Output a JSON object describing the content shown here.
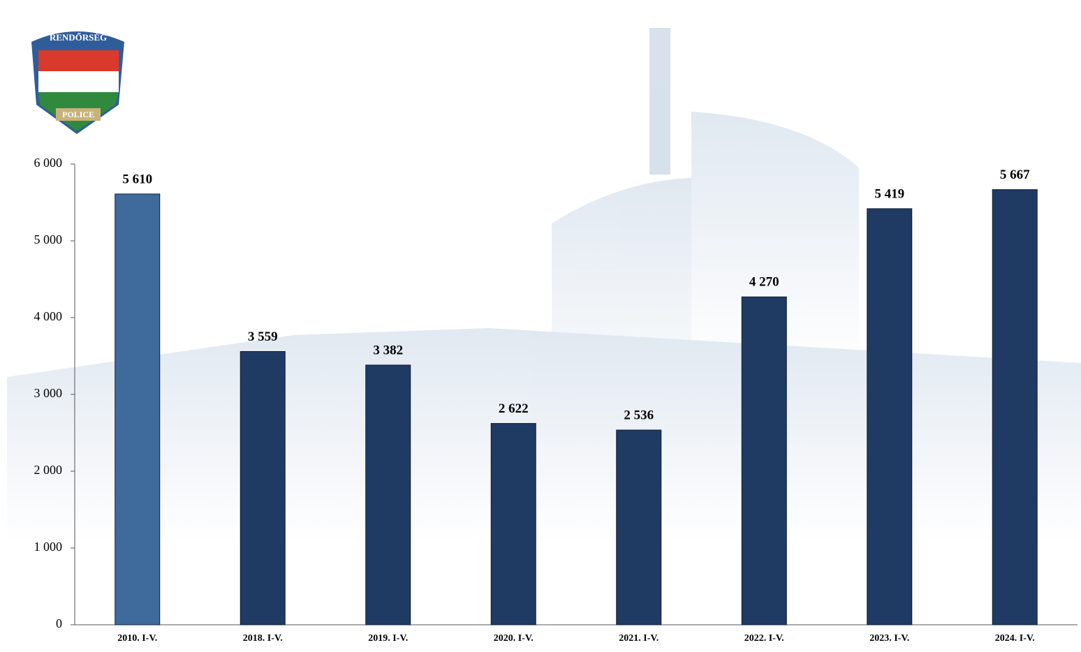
{
  "logo": {
    "top": "RENDŐRSÉG",
    "bottom": "POLICE"
  },
  "chart_data": {
    "type": "bar",
    "categories": [
      "2010. I-V.",
      "2018. I-V.",
      "2019. I-V.",
      "2020. I-V.",
      "2021. I-V.",
      "2022. I-V.",
      "2023. I-V.",
      "2024. I-V."
    ],
    "values": [
      5610,
      3559,
      3382,
      2622,
      2536,
      4270,
      5419,
      5667
    ],
    "value_labels": [
      "5 610",
      "3 559",
      "3 382",
      "2 622",
      "2 536",
      "4 270",
      "5 419",
      "5 667"
    ],
    "colors": [
      "#3f6a9c",
      "#1f3a63",
      "#1f3a63",
      "#1f3a63",
      "#1f3a63",
      "#1f3a63",
      "#1f3a63",
      "#1f3a63"
    ],
    "ylim": [
      0,
      6000
    ],
    "yticks": [
      0,
      {
        "value": 1000,
        "label": "1 000"
      },
      {
        "value": 2000,
        "label": "2 000"
      },
      {
        "value": 3000,
        "label": "3 000"
      },
      {
        "value": 4000,
        "label": "4 000"
      },
      {
        "value": 5000,
        "label": "5 000"
      },
      {
        "value": 6000,
        "label": "6 000"
      }
    ],
    "grid": false
  }
}
